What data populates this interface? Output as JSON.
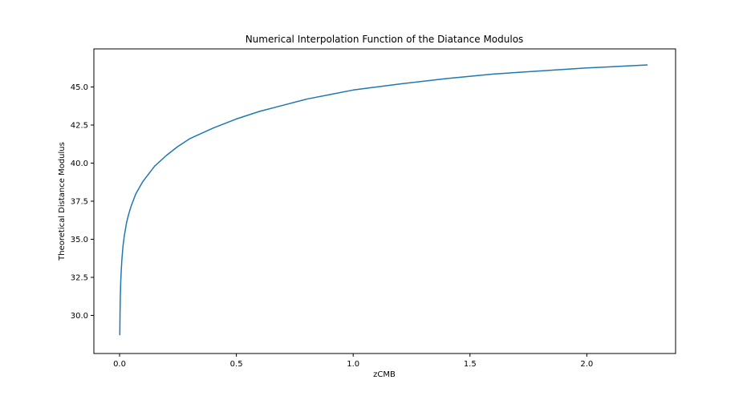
{
  "chart_data": {
    "type": "line",
    "title": "Numerical Interpolation Function of the Diatance Modulos",
    "xlabel": "zCMB",
    "ylabel": "Theoretical Distance Modulus",
    "xlim": [
      -0.11,
      2.38
    ],
    "ylim": [
      27.5,
      47.5
    ],
    "xticks": [
      0.0,
      0.5,
      1.0,
      1.5,
      2.0
    ],
    "xtick_labels": [
      "0.0",
      "0.5",
      "1.0",
      "1.5",
      "2.0"
    ],
    "yticks": [
      30.0,
      32.5,
      35.0,
      37.5,
      40.0,
      42.5,
      45.0
    ],
    "ytick_labels": [
      "30.0",
      "32.5",
      "35.0",
      "37.5",
      "40.0",
      "42.5",
      "45.0"
    ],
    "grid": false,
    "colors": {
      "line": "#1f77b4",
      "axes": "#000000",
      "background": "#ffffff"
    },
    "series": [
      {
        "x": [
          0.001,
          0.002,
          0.003,
          0.004,
          0.005,
          0.007,
          0.01,
          0.015,
          0.02,
          0.03,
          0.04,
          0.05,
          0.07,
          0.1,
          0.15,
          0.2,
          0.25,
          0.3,
          0.4,
          0.5,
          0.6,
          0.7,
          0.8,
          0.9,
          1.0,
          1.2,
          1.4,
          1.6,
          1.8,
          2.0,
          2.2,
          2.26
        ],
        "y": [
          28.7,
          30.2,
          31.1,
          31.7,
          32.2,
          32.9,
          33.7,
          34.6,
          35.2,
          36.1,
          36.7,
          37.2,
          38.0,
          38.8,
          39.8,
          40.5,
          41.1,
          41.6,
          42.3,
          42.9,
          43.4,
          43.8,
          44.2,
          44.5,
          44.8,
          45.2,
          45.55,
          45.85,
          46.05,
          46.25,
          46.4,
          46.45
        ]
      }
    ]
  }
}
